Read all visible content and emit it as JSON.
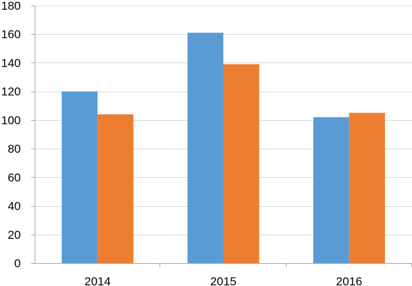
{
  "chart_data": {
    "type": "bar",
    "categories": [
      "2014",
      "2015",
      "2016"
    ],
    "series": [
      {
        "color": "#5b9bd5",
        "values": [
          120,
          161,
          102
        ]
      },
      {
        "color": "#ed7d31",
        "values": [
          104,
          139,
          105
        ]
      }
    ],
    "ylim": [
      0,
      180
    ],
    "yticks": [
      0,
      20,
      40,
      60,
      80,
      100,
      120,
      140,
      160,
      180
    ],
    "grid": true,
    "title": "",
    "xlabel": "",
    "ylabel": ""
  }
}
